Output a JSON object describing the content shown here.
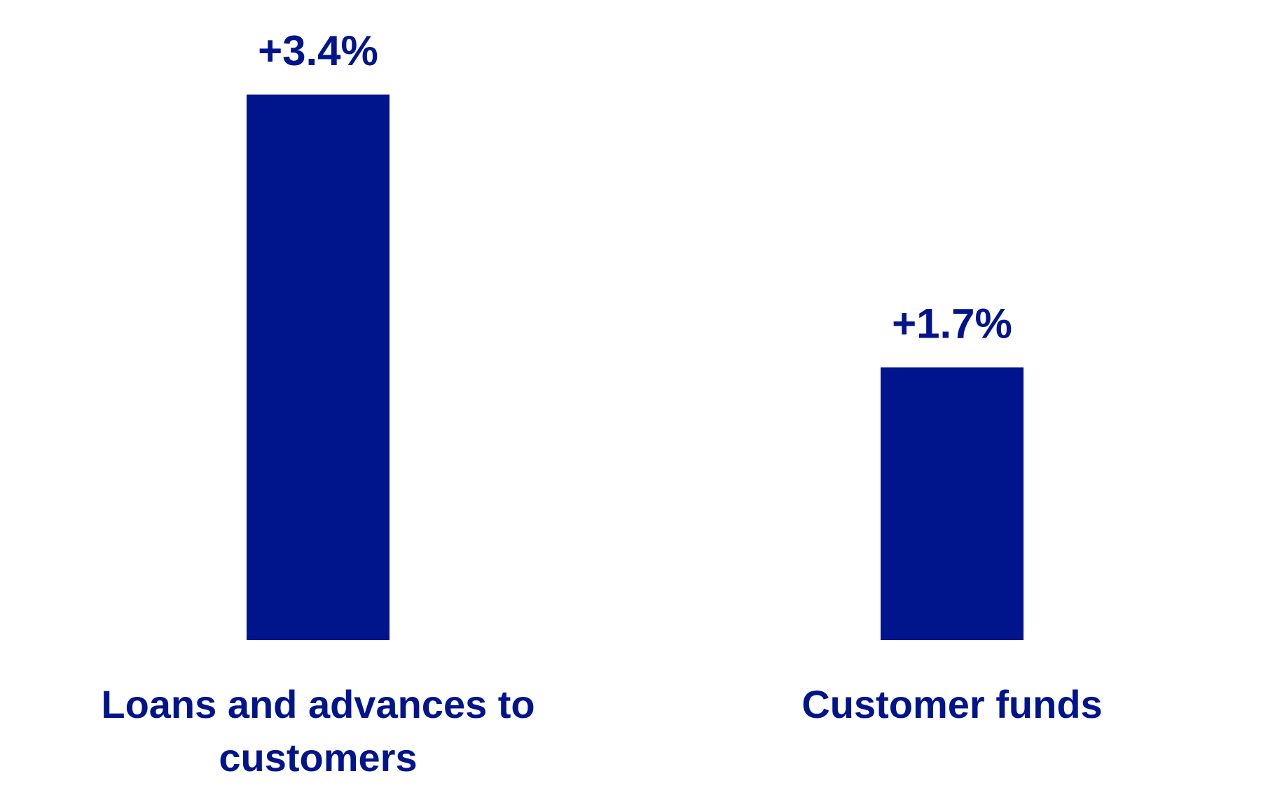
{
  "chart_data": {
    "type": "bar",
    "categories": [
      "Loans and advances to customers",
      "Customer funds"
    ],
    "values": [
      3.4,
      1.7
    ],
    "value_labels": [
      "+3.4%",
      "+1.7%"
    ],
    "color": "#00148c"
  }
}
